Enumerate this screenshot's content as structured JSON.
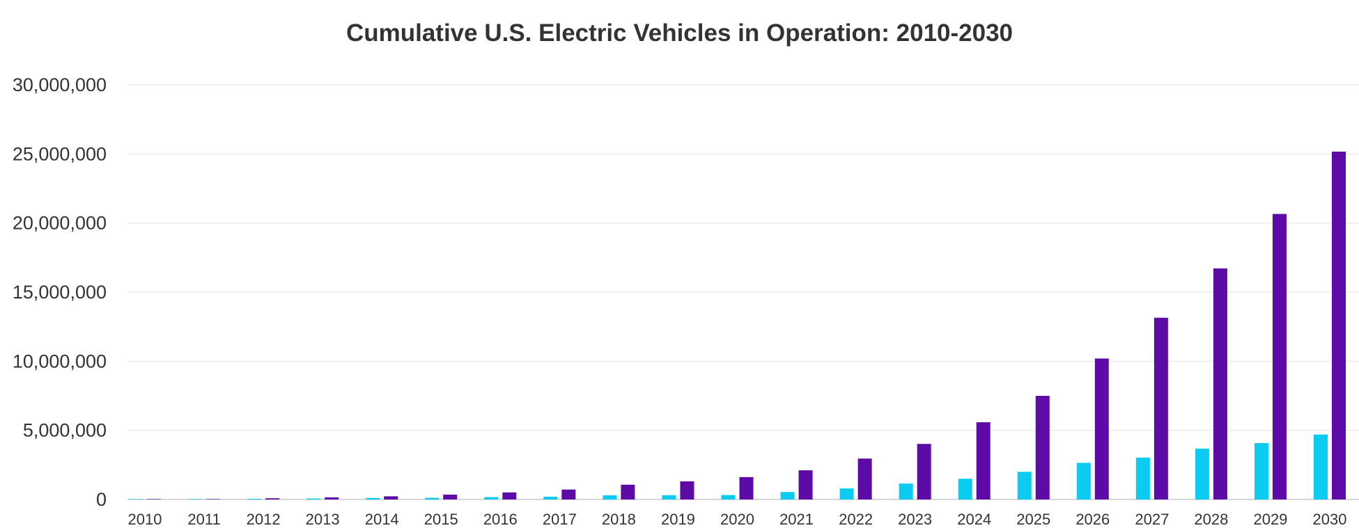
{
  "chart_data": {
    "type": "bar",
    "title": "Cumulative U.S. Electric Vehicles in Operation: 2010-2030",
    "xlabel": "",
    "ylabel": "",
    "ylim": [
      0,
      30000000
    ],
    "yticks": [
      0,
      5000000,
      10000000,
      15000000,
      20000000,
      25000000,
      30000000
    ],
    "ytick_labels": [
      "0",
      "5,000,000",
      "10,000,000",
      "15,000,000",
      "20,000,000",
      "25,000,000",
      "30,000,000"
    ],
    "grid": true,
    "legend": "none",
    "categories": [
      "2010",
      "2011",
      "2012",
      "2013",
      "2014",
      "2015",
      "2016",
      "2017",
      "2018",
      "2019",
      "2020",
      "2021",
      "2022",
      "2023",
      "2024",
      "2025",
      "2026",
      "2027",
      "2028",
      "2029",
      "2030"
    ],
    "series": [
      {
        "color": "#0ccbf0",
        "values": [
          2000,
          15000,
          50000,
          70000,
          110000,
          120000,
          170000,
          200000,
          300000,
          310000,
          320000,
          540000,
          800000,
          1150000,
          1500000,
          2000000,
          2650000,
          3030000,
          3680000,
          4080000,
          4700000
        ]
      },
      {
        "color": "#5c0ba6",
        "values": [
          5000,
          30000,
          90000,
          150000,
          230000,
          350000,
          510000,
          720000,
          1070000,
          1310000,
          1620000,
          2110000,
          2960000,
          4020000,
          5590000,
          7500000,
          10200000,
          13150000,
          16720000,
          20660000,
          25170000
        ]
      }
    ]
  }
}
